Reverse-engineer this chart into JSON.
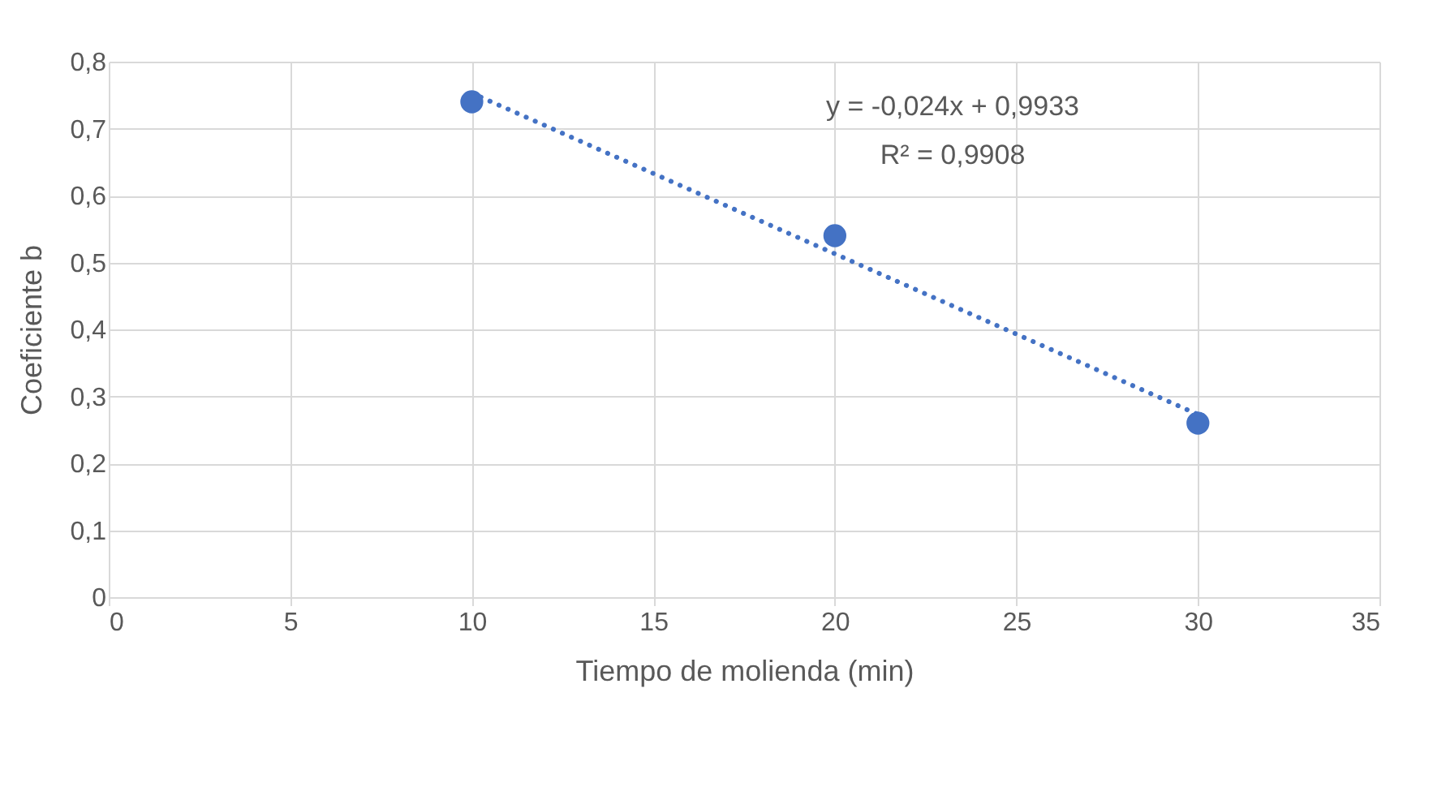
{
  "chart_data": {
    "type": "scatter",
    "xlabel": "Tiempo de molienda (min)",
    "ylabel": "Coeficiente b",
    "series": [
      {
        "color": "#4472c4",
        "marker": "circle",
        "x": [
          10,
          20,
          30
        ],
        "values": [
          0.74,
          0.54,
          0.26
        ]
      },
      {
        "type": "line",
        "color": "#4472c4",
        "line_style": "dotted",
        "marker": "none",
        "x": [
          10,
          30
        ],
        "values": [
          0.753,
          0.273
        ]
      }
    ],
    "xlim": [
      0,
      35
    ],
    "xticks": [
      0,
      5,
      10,
      15,
      20,
      25,
      30,
      35
    ],
    "ylim": [
      0,
      0.8
    ],
    "yticks": [
      {
        "value": 0,
        "label": "0"
      },
      {
        "value": 0.1,
        "label": "0,1"
      },
      {
        "value": 0.2,
        "label": "0,2"
      },
      {
        "value": 0.3,
        "label": "0,3"
      },
      {
        "value": 0.4,
        "label": "0,4"
      },
      {
        "value": 0.5,
        "label": "0,5"
      },
      {
        "value": 0.6,
        "label": "0,6"
      },
      {
        "value": 0.7,
        "label": "0,7"
      },
      {
        "value": 0.8,
        "label": "0,8"
      }
    ],
    "annotations": [
      "y = -0,024x + 0,9933",
      "R² = 0,9908"
    ],
    "grid": true
  }
}
